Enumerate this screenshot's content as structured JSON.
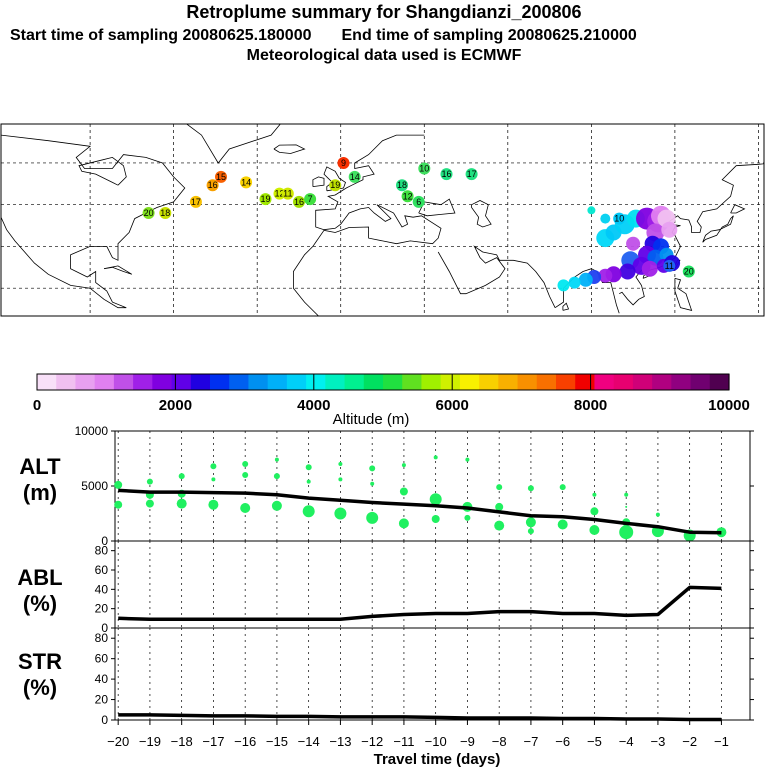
{
  "header": {
    "title": "Retroplume summary for Shangdianzi_200806",
    "subtitle_left": "Start time of sampling 20080625.180000",
    "subtitle_right": "End time of sampling 20080625.210000",
    "subtitle2": "Meteorological data used is ECMWF"
  },
  "colorbar": {
    "label": "Altitude (m)",
    "ticks": [
      "0",
      "2000",
      "4000",
      "6000",
      "8000",
      "10000"
    ],
    "colors": [
      "#f8e0f8",
      "#f0c0f0",
      "#e8a0f0",
      "#e080f0",
      "#c050e8",
      "#a020e8",
      "#8000e0",
      "#6000e8",
      "#2000e0",
      "#0030f0",
      "#0060f0",
      "#0090f0",
      "#00b0f8",
      "#00d0f8",
      "#00f0f0",
      "#00f0c0",
      "#00f090",
      "#00e060",
      "#20e040",
      "#60e020",
      "#a0f000",
      "#d0f000",
      "#f8f000",
      "#f8d000",
      "#f8b000",
      "#f89000",
      "#f87000",
      "#f84000",
      "#f00000",
      "#f00080",
      "#e80070",
      "#d00078",
      "#b00080",
      "#900080",
      "#700070",
      "#500050"
    ]
  },
  "map_labels": [
    {
      "t": "20",
      "c": "#80e020",
      "lon": -69,
      "lat": 42
    },
    {
      "t": "18",
      "c": "#c8e000",
      "lon": -63,
      "lat": 42
    },
    {
      "t": "17",
      "c": "#f8c000",
      "lon": -52,
      "lat": 46
    },
    {
      "t": "16",
      "c": "#f8a000",
      "lon": -46,
      "lat": 52
    },
    {
      "t": "15",
      "c": "#f86000",
      "lon": -43,
      "lat": 55
    },
    {
      "t": "14",
      "c": "#f8d000",
      "lon": -34,
      "lat": 53
    },
    {
      "t": "19",
      "c": "#a0e800",
      "lon": -27,
      "lat": 47
    },
    {
      "t": "12",
      "c": "#d0f000",
      "lon": -22,
      "lat": 49
    },
    {
      "t": "11",
      "c": "#d0e800",
      "lon": -19,
      "lat": 49
    },
    {
      "t": "16",
      "c": "#a0e000",
      "lon": -15,
      "lat": 46
    },
    {
      "t": "7",
      "c": "#40e040",
      "lon": -11,
      "lat": 47
    },
    {
      "t": "9",
      "c": "#f83000",
      "lon": 1,
      "lat": 60
    },
    {
      "t": "19",
      "c": "#c0e000",
      "lon": -2,
      "lat": 52
    },
    {
      "t": "14",
      "c": "#40e060",
      "lon": 5,
      "lat": 55
    },
    {
      "t": "18",
      "c": "#20e080",
      "lon": 22,
      "lat": 52
    },
    {
      "t": "12",
      "c": "#40e040",
      "lon": 24,
      "lat": 48
    },
    {
      "t": "6",
      "c": "#30e060",
      "lon": 28,
      "lat": 46
    },
    {
      "t": "10",
      "c": "#40e060",
      "lon": 30,
      "lat": 58
    },
    {
      "t": "16",
      "c": "#20e080",
      "lon": 38,
      "lat": 56
    },
    {
      "t": "17",
      "c": "#20e080",
      "lon": 47,
      "lat": 56
    },
    {
      "t": "10",
      "c": "#00c8f8",
      "lon": 100,
      "lat": 40
    },
    {
      "t": "11",
      "c": "#2060f0",
      "lon": 118,
      "lat": 23
    },
    {
      "t": "20",
      "c": "#20e060",
      "lon": 125,
      "lat": 21
    }
  ],
  "panels": {
    "alt": {
      "label1": "ALT",
      "label2": "(m)",
      "ymin": 0,
      "ymax": 10000,
      "ticks": [
        0,
        5000,
        10000
      ]
    },
    "abl": {
      "label1": "ABL",
      "label2": "(%)",
      "ymin": 0,
      "ymax": 90,
      "ticks": [
        0,
        20,
        40,
        60,
        80
      ]
    },
    "str": {
      "label1": "STR",
      "label2": "(%)",
      "ymin": 0,
      "ymax": 90,
      "ticks": [
        0,
        20,
        40,
        60,
        80
      ]
    }
  },
  "xaxis": {
    "label": "Travel time (days)",
    "ticks": [
      -20,
      -19,
      -18,
      -17,
      -16,
      -15,
      -14,
      -13,
      -12,
      -11,
      -10,
      -9,
      -8,
      -7,
      -6,
      -5,
      -4,
      -3,
      -2,
      -1
    ],
    "xmin": -20.1,
    "xmax": -0.1
  },
  "chart_data": [
    {
      "type": "line",
      "title": "ALT",
      "xlabel": "Travel time (days)",
      "ylabel": "ALT (m)",
      "ylim": [
        0,
        10000
      ],
      "x": [
        -20,
        -19,
        -18,
        -17,
        -16,
        -15,
        -14,
        -13,
        -12,
        -11,
        -10,
        -9,
        -8,
        -7,
        -6,
        -5,
        -4,
        -3,
        -2,
        -1
      ],
      "series": [
        {
          "name": "mean altitude",
          "values": [
            4600,
            4450,
            4450,
            4400,
            4350,
            4200,
            3900,
            3700,
            3500,
            3350,
            3200,
            3000,
            2650,
            2300,
            2200,
            1950,
            1600,
            1300,
            800,
            750
          ]
        }
      ],
      "cluster_points": [
        {
          "x": -20,
          "y": 5100,
          "r": 4
        },
        {
          "x": -20,
          "y": 3300,
          "r": 4
        },
        {
          "x": -19,
          "y": 5400,
          "r": 3
        },
        {
          "x": -19,
          "y": 4200,
          "r": 4
        },
        {
          "x": -19,
          "y": 3400,
          "r": 4
        },
        {
          "x": -18,
          "y": 5900,
          "r": 3
        },
        {
          "x": -18,
          "y": 4300,
          "r": 4
        },
        {
          "x": -18,
          "y": 3400,
          "r": 5
        },
        {
          "x": -17,
          "y": 6800,
          "r": 3
        },
        {
          "x": -17,
          "y": 5600,
          "r": 2
        },
        {
          "x": -17,
          "y": 3300,
          "r": 5
        },
        {
          "x": -16,
          "y": 7000,
          "r": 3
        },
        {
          "x": -16,
          "y": 6000,
          "r": 3
        },
        {
          "x": -16,
          "y": 3000,
          "r": 5
        },
        {
          "x": -15,
          "y": 7400,
          "r": 2
        },
        {
          "x": -15,
          "y": 5900,
          "r": 3
        },
        {
          "x": -15,
          "y": 3200,
          "r": 5
        },
        {
          "x": -14,
          "y": 6700,
          "r": 3
        },
        {
          "x": -14,
          "y": 5400,
          "r": 2
        },
        {
          "x": -14,
          "y": 2700,
          "r": 6
        },
        {
          "x": -13,
          "y": 7000,
          "r": 2
        },
        {
          "x": -13,
          "y": 5600,
          "r": 2
        },
        {
          "x": -13,
          "y": 2500,
          "r": 6
        },
        {
          "x": -12,
          "y": 6600,
          "r": 3
        },
        {
          "x": -12,
          "y": 5200,
          "r": 2
        },
        {
          "x": -12,
          "y": 2100,
          "r": 6
        },
        {
          "x": -11,
          "y": 6900,
          "r": 2
        },
        {
          "x": -11,
          "y": 4500,
          "r": 4
        },
        {
          "x": -11,
          "y": 1600,
          "r": 5
        },
        {
          "x": -10,
          "y": 7600,
          "r": 2
        },
        {
          "x": -10,
          "y": 3800,
          "r": 6
        },
        {
          "x": -10,
          "y": 2000,
          "r": 4
        },
        {
          "x": -9,
          "y": 7400,
          "r": 2
        },
        {
          "x": -9,
          "y": 3100,
          "r": 5
        },
        {
          "x": -9,
          "y": 2100,
          "r": 3
        },
        {
          "x": -8,
          "y": 4900,
          "r": 3
        },
        {
          "x": -8,
          "y": 3100,
          "r": 4
        },
        {
          "x": -8,
          "y": 1400,
          "r": 5
        },
        {
          "x": -7,
          "y": 4800,
          "r": 3
        },
        {
          "x": -7,
          "y": 1700,
          "r": 5
        },
        {
          "x": -7,
          "y": 900,
          "r": 3
        },
        {
          "x": -6,
          "y": 4900,
          "r": 3
        },
        {
          "x": -6,
          "y": 1500,
          "r": 5
        },
        {
          "x": -5,
          "y": 4200,
          "r": 2
        },
        {
          "x": -5,
          "y": 2700,
          "r": 4
        },
        {
          "x": -5,
          "y": 1000,
          "r": 5
        },
        {
          "x": -4,
          "y": 4200,
          "r": 2
        },
        {
          "x": -4,
          "y": 3100,
          "r": 1
        },
        {
          "x": -4,
          "y": 1700,
          "r": 4
        },
        {
          "x": -4,
          "y": 800,
          "r": 7
        },
        {
          "x": -3,
          "y": 2400,
          "r": 2
        },
        {
          "x": -3,
          "y": 900,
          "r": 6
        },
        {
          "x": -2,
          "y": 500,
          "r": 6
        },
        {
          "x": -1,
          "y": 800,
          "r": 5
        }
      ]
    },
    {
      "type": "line",
      "title": "ABL",
      "xlabel": "Travel time (days)",
      "ylabel": "ABL (%)",
      "ylim": [
        0,
        90
      ],
      "x": [
        -20,
        -19,
        -18,
        -17,
        -16,
        -15,
        -14,
        -13,
        -12,
        -11,
        -10,
        -9,
        -8,
        -7,
        -6,
        -5,
        -4,
        -3,
        -2,
        -1
      ],
      "series": [
        {
          "name": "ABL fraction",
          "values": [
            10,
            9,
            9,
            9,
            9,
            9,
            9,
            9,
            12,
            14,
            15,
            15,
            17,
            17,
            15,
            15,
            13,
            14,
            42,
            41
          ]
        }
      ]
    },
    {
      "type": "line",
      "title": "STR",
      "xlabel": "Travel time (days)",
      "ylabel": "STR (%)",
      "ylim": [
        0,
        90
      ],
      "x": [
        -20,
        -19,
        -18,
        -17,
        -16,
        -15,
        -14,
        -13,
        -12,
        -11,
        -10,
        -9,
        -8,
        -7,
        -6,
        -5,
        -4,
        -3,
        -2,
        -1
      ],
      "series": [
        {
          "name": "STR fraction",
          "values": [
            5,
            5,
            4.5,
            4,
            4,
            3.5,
            3.5,
            3,
            3,
            3,
            2.5,
            2,
            2,
            2,
            1.5,
            1.5,
            1,
            1,
            0.5,
            0.5
          ]
        }
      ]
    }
  ]
}
